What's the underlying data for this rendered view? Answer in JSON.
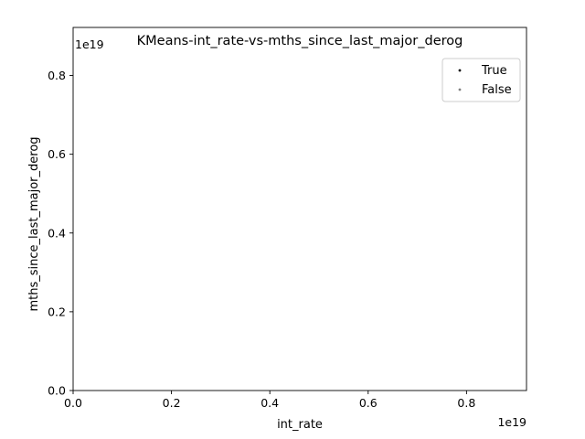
{
  "chart_data": {
    "type": "scatter",
    "title": "KMeans-int_rate-vs-mths_since_last_major_derog",
    "xlabel": "int_rate",
    "ylabel": "mths_since_last_major_derog",
    "x_offset_label": "1e19",
    "y_offset_label": "1e19",
    "xlim": [
      0.0,
      0.922
    ],
    "ylim": [
      0.0,
      0.922
    ],
    "xticks": [
      0.0,
      0.2,
      0.4,
      0.6,
      0.8
    ],
    "yticks": [
      0.0,
      0.2,
      0.4,
      0.6,
      0.8
    ],
    "xtick_labels": [
      "0.0",
      "0.2",
      "0.4",
      "0.6",
      "0.8"
    ],
    "ytick_labels": [
      "0.0",
      "0.2",
      "0.4",
      "0.6",
      "0.8"
    ],
    "grid": false,
    "legend_position": "top-right",
    "series": [
      {
        "name": "True",
        "color": "#000000",
        "points": []
      },
      {
        "name": "False",
        "color": "#808080",
        "points": []
      }
    ]
  }
}
